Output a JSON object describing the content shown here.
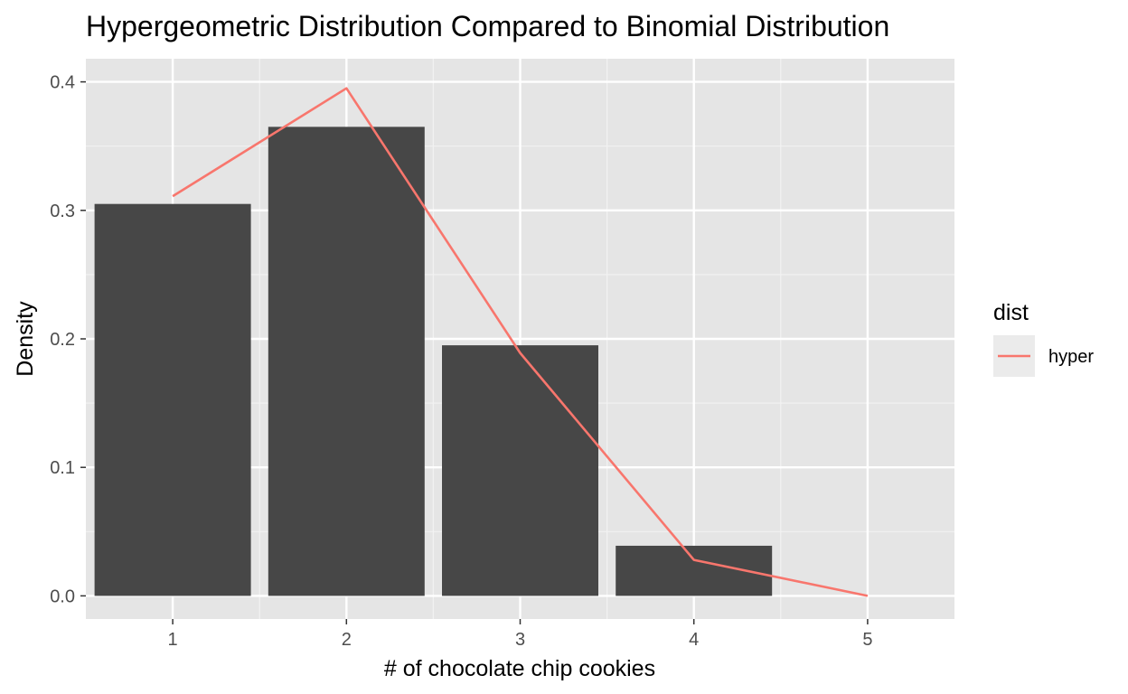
{
  "colors": {
    "panel_background": "#e5e5e5",
    "grid_major": "#ffffff",
    "grid_minor": "#f2f2f2",
    "bar_fill": "#474747",
    "line_color": "#f8766d",
    "axis_tick": "#333333",
    "legend_key_background": "#ebebeb"
  },
  "chart_data": {
    "type": "bar",
    "title": "Hypergeometric Distribution Compared to Binomial Distribution",
    "xlabel": "# of chocolate chip cookies",
    "ylabel": "Density",
    "x_ticks": [
      "1",
      "2",
      "3",
      "4",
      "5"
    ],
    "y_ticks": [
      "0.0",
      "0.1",
      "0.2",
      "0.3",
      "0.4"
    ],
    "xlim": [
      0.5,
      5.5
    ],
    "ylim": [
      -0.018,
      0.418
    ],
    "grid": true,
    "bars": {
      "x": [
        1,
        2,
        3,
        4
      ],
      "values": [
        0.305,
        0.365,
        0.195,
        0.039
      ]
    },
    "series": [
      {
        "name": "hyper",
        "type": "line",
        "x": [
          1,
          2,
          3,
          4,
          5
        ],
        "values": [
          0.311,
          0.395,
          0.189,
          0.028,
          0.0
        ]
      }
    ],
    "legend": {
      "title": "dist",
      "position": "right",
      "entries": [
        "hyper"
      ]
    }
  }
}
